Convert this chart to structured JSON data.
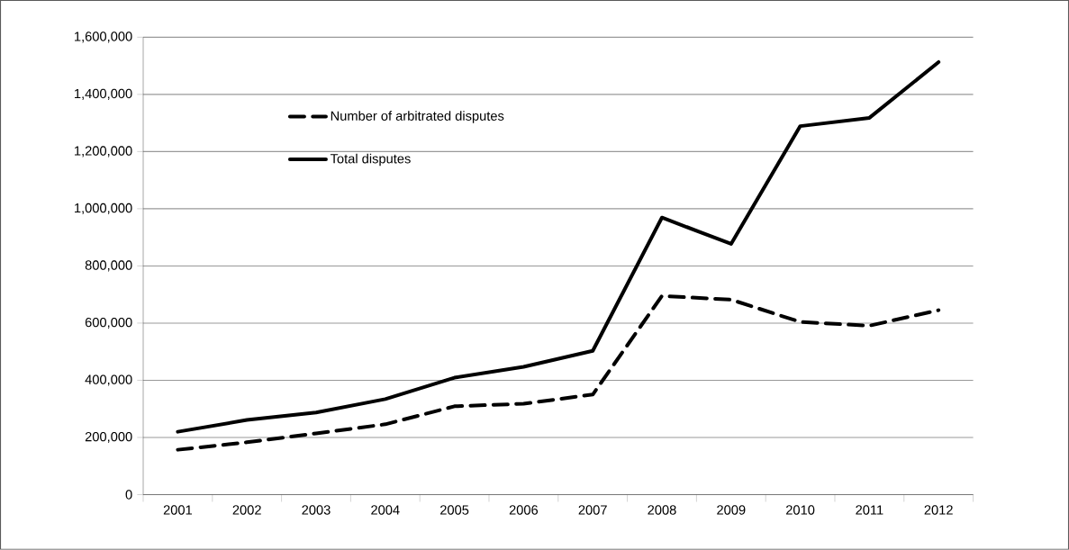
{
  "chart_data": {
    "type": "line",
    "categories": [
      "2001",
      "2002",
      "2003",
      "2004",
      "2005",
      "2006",
      "2007",
      "2008",
      "2009",
      "2010",
      "2011",
      "2012"
    ],
    "series": [
      {
        "name": "Number of arbitrated disputes",
        "color": "#000000",
        "line_style": "dashed",
        "values": [
          157000,
          183000,
          214000,
          246000,
          309000,
          318000,
          350000,
          695000,
          682000,
          604000,
          591000,
          645000
        ]
      },
      {
        "name": "Total disputes",
        "color": "#000000",
        "line_style": "solid",
        "values": [
          220000,
          261000,
          287000,
          334000,
          409000,
          447000,
          503000,
          969000,
          877000,
          1289000,
          1318000,
          1513000
        ]
      }
    ],
    "ylim": [
      0,
      1600000
    ],
    "yticks": [
      {
        "value": 0,
        "label": "0"
      },
      {
        "value": 200000,
        "label": "200,000"
      },
      {
        "value": 400000,
        "label": "400,000"
      },
      {
        "value": 600000,
        "label": "600,000"
      },
      {
        "value": 800000,
        "label": "800,000"
      },
      {
        "value": 1000000,
        "label": "1,000,000"
      },
      {
        "value": 1200000,
        "label": "1,200,000"
      },
      {
        "value": 1400000,
        "label": "1,400,000"
      },
      {
        "value": 1600000,
        "label": "1,600,000"
      }
    ],
    "grid": "y",
    "legend": "top left",
    "marker": "none"
  }
}
